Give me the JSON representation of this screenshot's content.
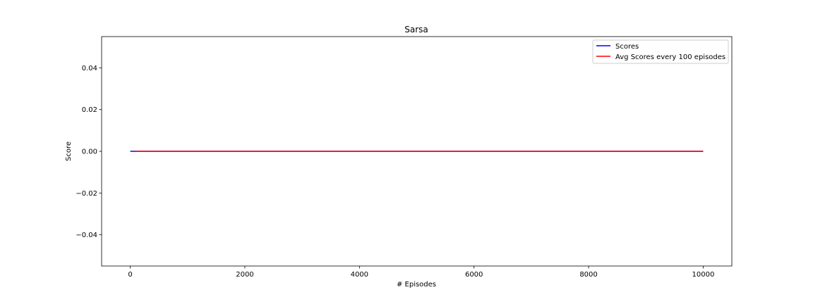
{
  "chart_data": {
    "type": "line",
    "title": "Sarsa",
    "xlabel": "# Episodes",
    "ylabel": "Score",
    "xlim": [
      -500,
      10500
    ],
    "ylim": [
      -0.055,
      0.055
    ],
    "xticks": [
      0,
      2000,
      4000,
      6000,
      8000,
      10000
    ],
    "xtick_labels": [
      "0",
      "2000",
      "4000",
      "6000",
      "8000",
      "10000"
    ],
    "yticks": [
      -0.04,
      -0.02,
      0.0,
      0.02,
      0.04
    ],
    "ytick_labels": [
      "−0.04",
      "−0.02",
      "0.00",
      "0.02",
      "0.04"
    ],
    "grid": false,
    "legend_position": "top-right",
    "series": [
      {
        "name": "Scores",
        "color": "#0000ff",
        "x": [
          0,
          10000
        ],
        "values": [
          0,
          0
        ]
      },
      {
        "name": "Avg Scores every 100 episodes",
        "color": "#ff0000",
        "x": [
          100,
          10000
        ],
        "values": [
          0,
          0
        ]
      }
    ]
  }
}
